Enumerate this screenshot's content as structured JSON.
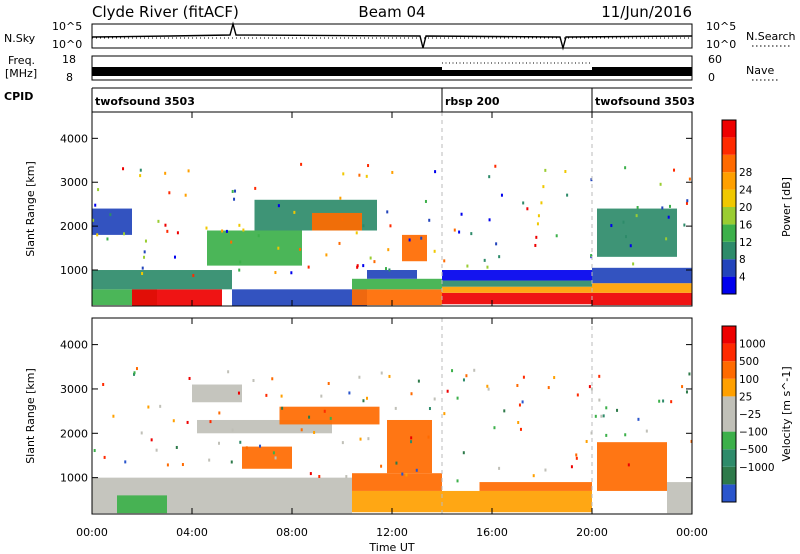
{
  "header": {
    "station": "Clyde River (fitACF)",
    "beam": "Beam 04",
    "date": "11/Jun/2016"
  },
  "strip_labels": {
    "nsky": "N.Sky",
    "freq_line1": "Freq.",
    "freq_line2": "[MHz]",
    "cpid": "CPID",
    "nsearch": "N.Search",
    "nave": "Nave"
  },
  "strip_ticks": {
    "nsky_top": "10^5",
    "nsky_bottom": "10^0",
    "nsearch_top": "10^5",
    "nsearch_bottom": "10^0",
    "freq_top": "18",
    "freq_bottom": "8",
    "nave_top": "60",
    "nave_bottom": "0"
  },
  "cpid_segments": [
    {
      "label": "twofsound 3503",
      "start_hour": 0,
      "end_hour": 14
    },
    {
      "label": "rbsp 200",
      "start_hour": 14,
      "end_hour": 20
    },
    {
      "label": "twofsound 3503",
      "start_hour": 20,
      "end_hour": 24
    }
  ],
  "chart_data": [
    {
      "type": "heatmap",
      "name": "power",
      "xlabel": "Time UT",
      "ylabel": "Slant Range [km]",
      "xlim": [
        0,
        24
      ],
      "ylim": [
        180,
        4600
      ],
      "x_ticks": [
        "00:00",
        "04:00",
        "08:00",
        "12:00",
        "16:00",
        "20:00",
        "00:00"
      ],
      "y_ticks": [
        "1000",
        "2000",
        "3000",
        "4000"
      ],
      "colorbar": {
        "label": "Power [dB]",
        "tick_labels": [
          "4",
          "8",
          "12",
          "16",
          "20",
          "24",
          "28"
        ],
        "colors": [
          "#0000ee",
          "#2244bb",
          "#2e8b6a",
          "#3cb04a",
          "#9acd32",
          "#f0c800",
          "#ffa000",
          "#ff6a00",
          "#ff2a00",
          "#ee0000"
        ]
      },
      "regions": [
        {
          "t0": 0.0,
          "t1": 2.6,
          "r0": 200,
          "r1": 560,
          "color": "#3cb04a"
        },
        {
          "t0": 1.6,
          "t1": 5.2,
          "r0": 190,
          "r1": 560,
          "color": "#ee0000"
        },
        {
          "t0": 0.0,
          "t1": 5.6,
          "r0": 560,
          "r1": 1000,
          "color": "#2e8b6a"
        },
        {
          "t0": 5.6,
          "t1": 11.0,
          "r0": 190,
          "r1": 560,
          "color": "#2244bb"
        },
        {
          "t0": 10.4,
          "t1": 14.0,
          "r0": 200,
          "r1": 560,
          "color": "#ff6a00"
        },
        {
          "t0": 10.4,
          "t1": 14.0,
          "r0": 560,
          "r1": 800,
          "color": "#3cb04a"
        },
        {
          "t0": 11.0,
          "t1": 13.0,
          "r0": 800,
          "r1": 1000,
          "color": "#2244bb"
        },
        {
          "t0": 14.0,
          "t1": 20.0,
          "r0": 220,
          "r1": 480,
          "color": "#ee0000"
        },
        {
          "t0": 14.0,
          "t1": 20.0,
          "r0": 480,
          "r1": 620,
          "color": "#ffa000"
        },
        {
          "t0": 14.0,
          "t1": 20.0,
          "r0": 620,
          "r1": 760,
          "color": "#2e8b6a"
        },
        {
          "t0": 14.0,
          "t1": 20.0,
          "r0": 760,
          "r1": 1000,
          "color": "#0000ee"
        },
        {
          "t0": 20.0,
          "t1": 24.0,
          "r0": 200,
          "r1": 480,
          "color": "#ee0000"
        },
        {
          "t0": 20.0,
          "t1": 24.0,
          "r0": 480,
          "r1": 700,
          "color": "#ffa000"
        },
        {
          "t0": 20.0,
          "t1": 24.0,
          "r0": 700,
          "r1": 1050,
          "color": "#2244bb"
        },
        {
          "t0": 4.6,
          "t1": 8.4,
          "r0": 1100,
          "r1": 1900,
          "color": "#3cb04a"
        },
        {
          "t0": 6.5,
          "t1": 11.4,
          "r0": 1900,
          "r1": 2600,
          "color": "#2e8b6a"
        },
        {
          "t0": 0.0,
          "t1": 1.6,
          "r0": 1800,
          "r1": 2400,
          "color": "#2244bb"
        },
        {
          "t0": 8.8,
          "t1": 10.8,
          "r0": 1900,
          "r1": 2300,
          "color": "#ff6a00"
        },
        {
          "t0": 12.4,
          "t1": 13.4,
          "r0": 1200,
          "r1": 1800,
          "color": "#ff6a00"
        },
        {
          "t0": 20.2,
          "t1": 23.4,
          "r0": 1300,
          "r1": 2400,
          "color": "#2e8b6a"
        }
      ]
    },
    {
      "type": "heatmap",
      "name": "velocity",
      "xlabel": "Time UT",
      "ylabel": "Slant Range [km]",
      "xlim": [
        0,
        24
      ],
      "ylim": [
        180,
        4600
      ],
      "x_ticks": [
        "00:00",
        "04:00",
        "08:00",
        "12:00",
        "16:00",
        "20:00",
        "00:00"
      ],
      "y_ticks": [
        "1000",
        "2000",
        "3000",
        "4000"
      ],
      "colorbar": {
        "label": "Velocity [m s^-1]",
        "tick_labels": [
          "1000",
          "500",
          "100",
          "25",
          "−25",
          "−100",
          "−500",
          "−1000"
        ],
        "colors": [
          "#2a55cc",
          "#2e7a4a",
          "#2e8b6a",
          "#3cb04a",
          "#c0c0b8",
          "#c0c0b8",
          "#ffa000",
          "#ff6a00",
          "#ff2a00",
          "#ee0000"
        ]
      },
      "regions": [
        {
          "t0": 0.0,
          "t1": 5.0,
          "r0": 200,
          "r1": 1000,
          "color": "#c0c0b8"
        },
        {
          "t0": 1.0,
          "t1": 3.0,
          "r0": 200,
          "r1": 600,
          "color": "#3cb04a"
        },
        {
          "t0": 5.0,
          "t1": 10.4,
          "r0": 200,
          "r1": 1000,
          "color": "#c0c0b8"
        },
        {
          "t0": 4.2,
          "t1": 9.6,
          "r0": 2000,
          "r1": 2300,
          "color": "#c0c0b8"
        },
        {
          "t0": 4.0,
          "t1": 6.0,
          "r0": 2700,
          "r1": 3100,
          "color": "#c0c0b8"
        },
        {
          "t0": 7.5,
          "t1": 11.5,
          "r0": 2200,
          "r1": 2600,
          "color": "#ff6a00"
        },
        {
          "t0": 10.4,
          "t1": 14.0,
          "r0": 220,
          "r1": 700,
          "color": "#ffa000"
        },
        {
          "t0": 10.4,
          "t1": 14.0,
          "r0": 700,
          "r1": 1100,
          "color": "#ff6a00"
        },
        {
          "t0": 14.0,
          "t1": 20.0,
          "r0": 220,
          "r1": 700,
          "color": "#ffa000"
        },
        {
          "t0": 15.5,
          "t1": 20.0,
          "r0": 700,
          "r1": 900,
          "color": "#ff6a00"
        },
        {
          "t0": 11.8,
          "t1": 13.6,
          "r0": 1100,
          "r1": 2300,
          "color": "#ff6a00"
        },
        {
          "t0": 20.2,
          "t1": 23.0,
          "r0": 700,
          "r1": 1800,
          "color": "#ff6a00"
        },
        {
          "t0": 23.0,
          "t1": 24.0,
          "r0": 200,
          "r1": 900,
          "color": "#c0c0b8"
        },
        {
          "t0": 6.0,
          "t1": 8.0,
          "r0": 1200,
          "r1": 1700,
          "color": "#ff6a00"
        }
      ]
    }
  ]
}
